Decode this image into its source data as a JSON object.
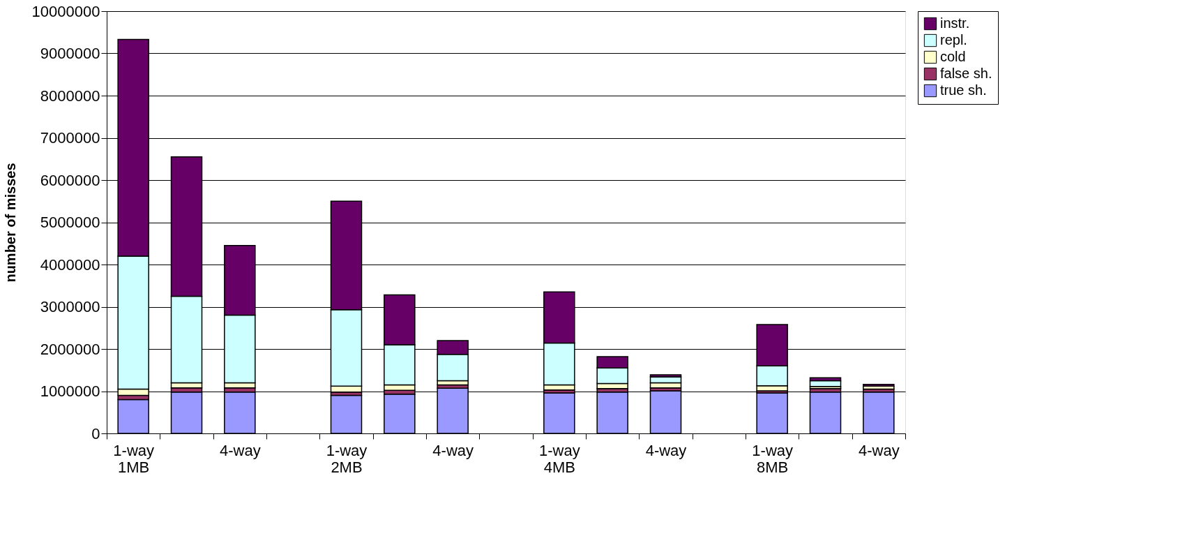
{
  "chart_data": {
    "type": "bar",
    "stacked": true,
    "ylabel": "number of misses",
    "categories": [
      "1-way\n1MB",
      null,
      "4-way",
      null,
      "1-way\n2MB",
      null,
      "4-way",
      null,
      "1-way\n4MB",
      null,
      "4-way",
      null,
      "1-way\n8MB",
      null,
      "4-way"
    ],
    "series": [
      {
        "name": "true sh.",
        "color": "#9999ff",
        "values": [
          800000,
          980000,
          980000,
          null,
          900000,
          930000,
          1070000,
          null,
          960000,
          980000,
          1010000,
          null,
          960000,
          980000,
          980000
        ]
      },
      {
        "name": "false sh.",
        "color": "#993366",
        "values": [
          100000,
          100000,
          100000,
          null,
          80000,
          90000,
          80000,
          null,
          70000,
          80000,
          70000,
          null,
          50000,
          80000,
          70000
        ]
      },
      {
        "name": "cold",
        "color": "#ffffcc",
        "values": [
          150000,
          120000,
          120000,
          null,
          140000,
          130000,
          100000,
          null,
          120000,
          120000,
          120000,
          null,
          120000,
          50000,
          70000
        ]
      },
      {
        "name": "repl.",
        "color": "#ccffff",
        "values": [
          3150000,
          2050000,
          1600000,
          null,
          1810000,
          950000,
          620000,
          null,
          990000,
          370000,
          140000,
          null,
          470000,
          140000,
          null
        ]
      },
      {
        "name": "instr.",
        "color": "#660066",
        "values": [
          5130000,
          3300000,
          1650000,
          null,
          2570000,
          1180000,
          330000,
          null,
          1210000,
          270000,
          50000,
          null,
          980000,
          70000,
          40000
        ]
      }
    ],
    "ylim": [
      0,
      10000000
    ],
    "yticks": [
      0,
      1000000,
      2000000,
      3000000,
      4000000,
      5000000,
      6000000,
      7000000,
      8000000,
      9000000,
      10000000
    ],
    "grid": "y",
    "legend": "right"
  }
}
